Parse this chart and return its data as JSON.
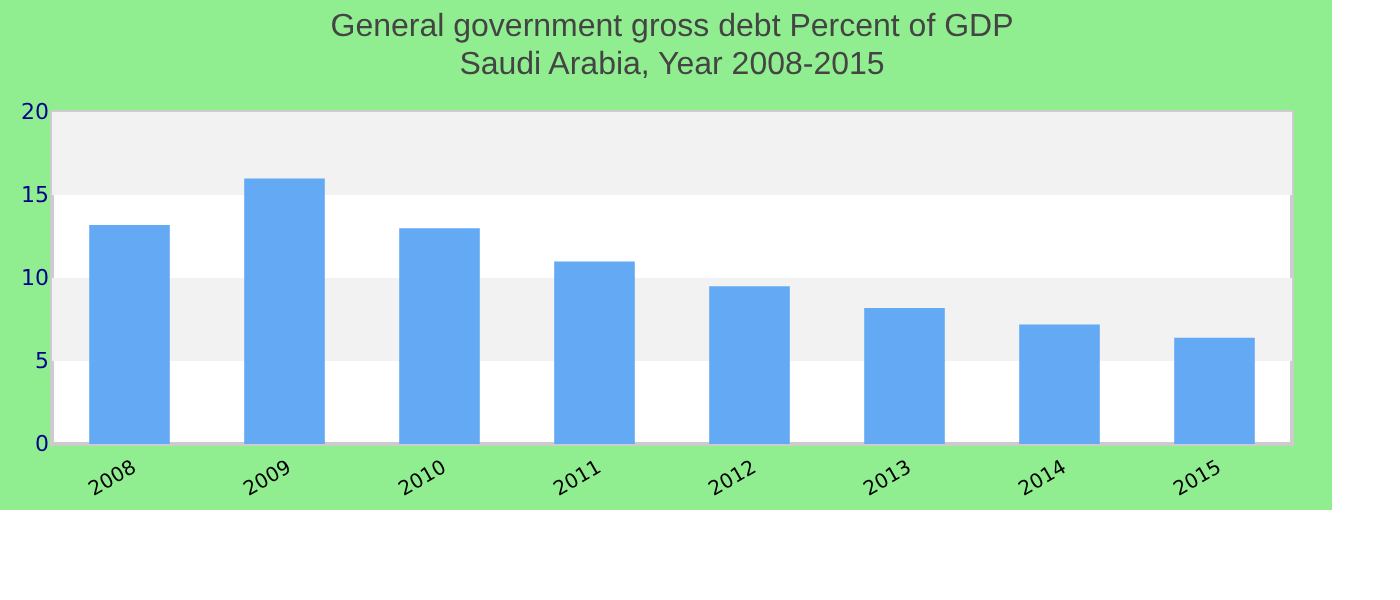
{
  "chart_data": {
    "type": "bar",
    "title": "General government gross debt  Percent of GDP",
    "subtitle": "Saudi Arabia, Year 2008-2015",
    "categories": [
      "2008",
      "2009",
      "2010",
      "2011",
      "2012",
      "2013",
      "2014",
      "2015"
    ],
    "values": [
      13.2,
      16.0,
      13.0,
      11.0,
      9.5,
      8.2,
      7.2,
      6.4
    ],
    "color": "#63a9f4",
    "ylim": [
      0,
      20
    ],
    "yticks": [
      0,
      5,
      10,
      15,
      20
    ],
    "bands": [
      {
        "axis": "y",
        "from": 5,
        "to": 10,
        "color": "#f2f2f2"
      },
      {
        "axis": "y",
        "from": 15,
        "to": 20,
        "color": "#f2f2f2"
      }
    ]
  }
}
